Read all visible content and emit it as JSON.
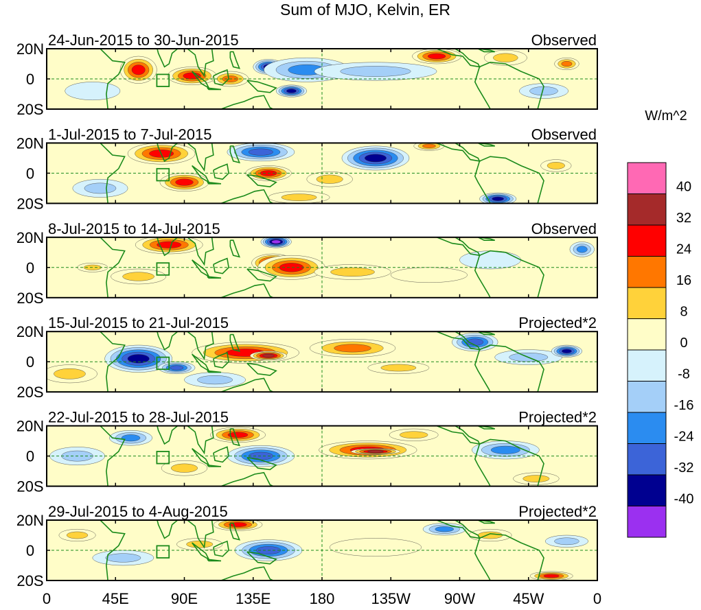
{
  "chart_data": {
    "type": "heatmap",
    "title": "Sum of MJO, Kelvin, ER",
    "x_tick_labels": [
      "0",
      "45E",
      "90E",
      "135E",
      "180",
      "135W",
      "90W",
      "45W",
      "0"
    ],
    "y_tick_labels": [
      "20N",
      "0",
      "20S"
    ],
    "x_range_deg_east": [
      0,
      360
    ],
    "y_range_deg_lat": [
      -20,
      20
    ],
    "colorbar": {
      "title": "W/m^2",
      "tick_labels": [
        "40",
        "32",
        "24",
        "16",
        "8",
        "0",
        "-8",
        "-16",
        "-24",
        "-32",
        "-40"
      ],
      "colors": [
        "#ff69b4",
        "#a52a2a",
        "#ff0000",
        "#ff7700",
        "#ffd23a",
        "#fffdc8",
        "#d6f2fc",
        "#a4cff8",
        "#2b8cf0",
        "#3c64d8",
        "#000090",
        "#9b30f0"
      ]
    },
    "panels": [
      {
        "period": "24-Jun-2015 to 30-Jun-2015",
        "kind": "Observed",
        "anomalies": [
          {
            "lon": 60,
            "lat": 6,
            "rx": 12,
            "ry": 9,
            "value": 28
          },
          {
            "lon": 95,
            "lat": 2,
            "rx": 16,
            "ry": 6,
            "value": 30
          },
          {
            "lon": 120,
            "lat": 0,
            "rx": 12,
            "ry": 5,
            "value": 22
          },
          {
            "lon": 145,
            "lat": 8,
            "rx": 10,
            "ry": 5,
            "value": -34
          },
          {
            "lon": 170,
            "lat": 6,
            "rx": 28,
            "ry": 8,
            "value": -18
          },
          {
            "lon": 160,
            "lat": -8,
            "rx": 10,
            "ry": 4,
            "value": -33
          },
          {
            "lon": 255,
            "lat": 15,
            "rx": 16,
            "ry": 5,
            "value": 30
          },
          {
            "lon": 300,
            "lat": 14,
            "rx": 14,
            "ry": 5,
            "value": 12
          },
          {
            "lon": 340,
            "lat": 10,
            "rx": 8,
            "ry": 4,
            "value": 18
          },
          {
            "lon": 325,
            "lat": -8,
            "rx": 16,
            "ry": 5,
            "value": -12
          },
          {
            "lon": 215,
            "lat": 5,
            "rx": 40,
            "ry": 6,
            "value": -10
          },
          {
            "lon": 30,
            "lat": -8,
            "rx": 18,
            "ry": 6,
            "value": -8
          }
        ]
      },
      {
        "period": "1-Jul-2015 to 7-Jul-2015",
        "kind": "Observed",
        "anomalies": [
          {
            "lon": 75,
            "lat": 13,
            "rx": 22,
            "ry": 7,
            "value": 30
          },
          {
            "lon": 90,
            "lat": -6,
            "rx": 16,
            "ry": 6,
            "value": 26
          },
          {
            "lon": 140,
            "lat": 14,
            "rx": 22,
            "ry": 6,
            "value": -26
          },
          {
            "lon": 145,
            "lat": 0,
            "rx": 15,
            "ry": 5,
            "value": 26
          },
          {
            "lon": 215,
            "lat": 10,
            "rx": 22,
            "ry": 8,
            "value": -34
          },
          {
            "lon": 250,
            "lat": 18,
            "rx": 10,
            "ry": 3,
            "value": 18
          },
          {
            "lon": 295,
            "lat": -17,
            "rx": 12,
            "ry": 4,
            "value": -34
          },
          {
            "lon": 333,
            "lat": 5,
            "rx": 10,
            "ry": 4,
            "value": 16
          },
          {
            "lon": 185,
            "lat": -4,
            "rx": 15,
            "ry": 5,
            "value": 14
          },
          {
            "lon": 35,
            "lat": -10,
            "rx": 18,
            "ry": 6,
            "value": -10
          },
          {
            "lon": 165,
            "lat": -16,
            "rx": 20,
            "ry": 4,
            "value": 10
          }
        ]
      },
      {
        "period": "8-Jul-2015 to 14-Jul-2015",
        "kind": "Observed",
        "anomalies": [
          {
            "lon": 80,
            "lat": 15,
            "rx": 22,
            "ry": 6,
            "value": 30
          },
          {
            "lon": 150,
            "lat": 17,
            "rx": 10,
            "ry": 4,
            "value": -42
          },
          {
            "lon": 148,
            "lat": 3,
            "rx": 14,
            "ry": 6,
            "value": 40
          },
          {
            "lon": 160,
            "lat": 0,
            "rx": 22,
            "ry": 8,
            "value": 26
          },
          {
            "lon": 200,
            "lat": -3,
            "rx": 25,
            "ry": 5,
            "value": 10
          },
          {
            "lon": 290,
            "lat": 5,
            "rx": 20,
            "ry": 6,
            "value": -8
          },
          {
            "lon": 350,
            "lat": 12,
            "rx": 8,
            "ry": 5,
            "value": -22
          },
          {
            "lon": 60,
            "lat": -6,
            "rx": 18,
            "ry": 5,
            "value": 10
          },
          {
            "lon": 30,
            "lat": 0,
            "rx": 10,
            "ry": 3,
            "value": 14
          },
          {
            "lon": 250,
            "lat": -5,
            "rx": 25,
            "ry": 5,
            "value": 8
          }
        ]
      },
      {
        "period": "15-Jul-2015 to 21-Jul-2015",
        "kind": "Projected*2",
        "anomalies": [
          {
            "lon": 60,
            "lat": 2,
            "rx": 22,
            "ry": 9,
            "value": -34
          },
          {
            "lon": 85,
            "lat": -4,
            "rx": 12,
            "ry": 4,
            "value": -26
          },
          {
            "lon": 130,
            "lat": 6,
            "rx": 35,
            "ry": 7,
            "value": 32
          },
          {
            "lon": 145,
            "lat": 4,
            "rx": 12,
            "ry": 3,
            "value": 40
          },
          {
            "lon": 200,
            "lat": 9,
            "rx": 28,
            "ry": 6,
            "value": 18
          },
          {
            "lon": 280,
            "lat": 13,
            "rx": 15,
            "ry": 6,
            "value": -32
          },
          {
            "lon": 315,
            "lat": 3,
            "rx": 22,
            "ry": 5,
            "value": -16
          },
          {
            "lon": 340,
            "lat": 7,
            "rx": 10,
            "ry": 4,
            "value": -34
          },
          {
            "lon": 15,
            "lat": -8,
            "rx": 18,
            "ry": 6,
            "value": 12
          },
          {
            "lon": 110,
            "lat": -12,
            "rx": 20,
            "ry": 5,
            "value": -10
          },
          {
            "lon": 230,
            "lat": -4,
            "rx": 20,
            "ry": 4,
            "value": 12
          }
        ]
      },
      {
        "period": "22-Jul-2015 to 28-Jul-2015",
        "kind": "Projected*2",
        "anomalies": [
          {
            "lon": 55,
            "lat": 12,
            "rx": 14,
            "ry": 5,
            "value": -20
          },
          {
            "lon": 20,
            "lat": 0,
            "rx": 18,
            "ry": 6,
            "value": -16
          },
          {
            "lon": 125,
            "lat": 14,
            "rx": 18,
            "ry": 5,
            "value": 26
          },
          {
            "lon": 140,
            "lat": 0,
            "rx": 22,
            "ry": 7,
            "value": -30
          },
          {
            "lon": 210,
            "lat": 4,
            "rx": 32,
            "ry": 6,
            "value": 30
          },
          {
            "lon": 215,
            "lat": 3,
            "rx": 16,
            "ry": 2,
            "value": 40
          },
          {
            "lon": 300,
            "lat": 4,
            "rx": 22,
            "ry": 6,
            "value": -18
          },
          {
            "lon": 320,
            "lat": -15,
            "rx": 15,
            "ry": 4,
            "value": 14
          },
          {
            "lon": 240,
            "lat": 14,
            "rx": 16,
            "ry": 4,
            "value": 10
          },
          {
            "lon": 90,
            "lat": -8,
            "rx": 15,
            "ry": 5,
            "value": 12
          }
        ]
      },
      {
        "period": "29-Jul-2015 to 4-Aug-2015",
        "kind": "Projected*2",
        "anomalies": [
          {
            "lon": 125,
            "lat": 17,
            "rx": 16,
            "ry": 4,
            "value": 28
          },
          {
            "lon": 145,
            "lat": 0,
            "rx": 22,
            "ry": 7,
            "value": -32
          },
          {
            "lon": 100,
            "lat": 4,
            "rx": 15,
            "ry": 4,
            "value": 14
          },
          {
            "lon": 50,
            "lat": -5,
            "rx": 20,
            "ry": 5,
            "value": -12
          },
          {
            "lon": 260,
            "lat": 14,
            "rx": 14,
            "ry": 4,
            "value": -20
          },
          {
            "lon": 290,
            "lat": 10,
            "rx": 14,
            "ry": 4,
            "value": 12
          },
          {
            "lon": 330,
            "lat": -17,
            "rx": 14,
            "ry": 3,
            "value": 26
          },
          {
            "lon": 340,
            "lat": 6,
            "rx": 14,
            "ry": 4,
            "value": -14
          },
          {
            "lon": 215,
            "lat": 2,
            "rx": 30,
            "ry": 6,
            "value": 8
          },
          {
            "lon": 20,
            "lat": 10,
            "rx": 12,
            "ry": 4,
            "value": 10
          }
        ]
      }
    ]
  }
}
